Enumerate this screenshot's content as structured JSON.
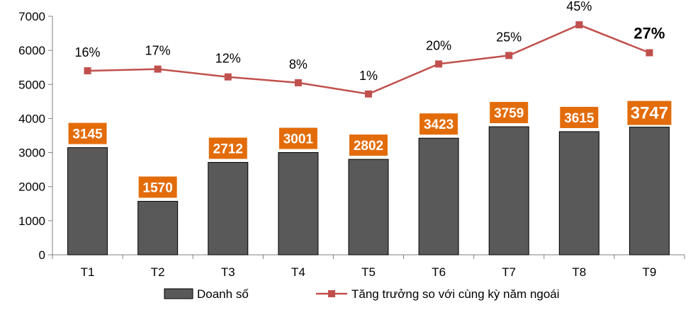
{
  "chart_data": {
    "type": "bar",
    "categories": [
      "T1",
      "T2",
      "T3",
      "T4",
      "T5",
      "T6",
      "T7",
      "T8",
      "T9"
    ],
    "ylim": [
      0,
      7000
    ],
    "yticks": [
      0,
      1000,
      2000,
      3000,
      4000,
      5000,
      6000,
      7000
    ],
    "grid": false,
    "legend_position": "bottom",
    "series": [
      {
        "name": "Doanh số",
        "type": "bar",
        "values": [
          3145,
          1570,
          2712,
          3001,
          2802,
          3423,
          3759,
          3615,
          3747
        ],
        "labels": [
          "3145",
          "1570",
          "2712",
          "3001",
          "2802",
          "3423",
          "3759",
          "3615",
          "3747"
        ],
        "color": "#595959",
        "label_bg": "#E36C0A"
      },
      {
        "name": "Tăng trưởng so với cùng kỳ năm ngoái",
        "type": "line",
        "values": [
          16,
          17,
          12,
          8,
          1,
          20,
          25,
          45,
          27
        ],
        "labels": [
          "16%",
          "17%",
          "12%",
          "8%",
          "1%",
          "20%",
          "25%",
          "45%",
          "27%"
        ],
        "plot_values": [
          5400,
          5450,
          5220,
          5050,
          4720,
          5600,
          5850,
          6750,
          5930
        ],
        "color": "#C0504D"
      }
    ]
  }
}
